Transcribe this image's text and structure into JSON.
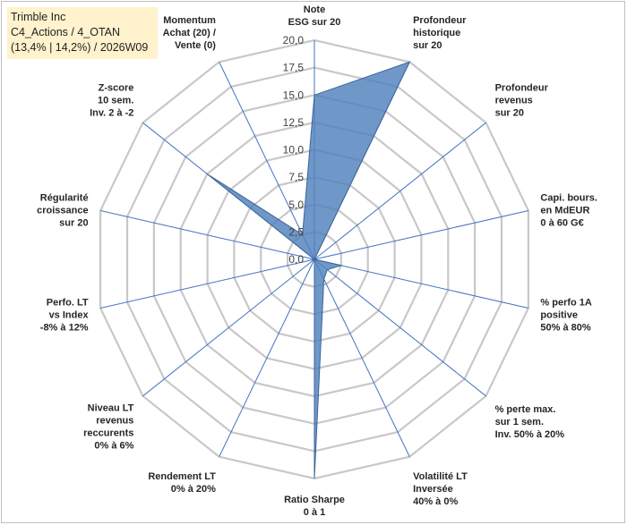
{
  "title_box": {
    "line1": "Trimble Inc",
    "line2": "C4_Actions / 4_OTAN",
    "line3": "(13,4% | 14,2%) / 2026W09"
  },
  "colors": {
    "fill": "#4f81bd",
    "stroke": "#3c6496",
    "axis_line": "#4472c4",
    "grid": "#c8c8c8",
    "title_bg": "#fff2cc"
  },
  "chart_data": {
    "type": "radar",
    "title": "Trimble Inc",
    "rmax": 20,
    "tick_step": 2.5,
    "tick_labels": [
      "0,0",
      "2,5",
      "5,0",
      "7,5",
      "10,0",
      "12,5",
      "15,0",
      "17,5",
      "20,0"
    ],
    "axes": [
      {
        "lines": [
          "Note",
          "ESG sur 20"
        ],
        "value": 15.0
      },
      {
        "lines": [
          "Profondeur",
          "historique",
          "sur 20"
        ],
        "value": 20.0
      },
      {
        "lines": [
          "Profondeur",
          "revenus",
          "sur 20"
        ],
        "value": 0.0
      },
      {
        "lines": [
          "Capi. bours.",
          "en MdEUR",
          "0 à 60 G€"
        ],
        "value": 0.0
      },
      {
        "lines": [
          "% perfo 1A",
          "positive",
          "50% à 80%"
        ],
        "value": 2.5
      },
      {
        "lines": [
          "% perte max.",
          "sur 1 sem.",
          "Inv. 50% à 20%"
        ],
        "value": 1.5
      },
      {
        "lines": [
          "Volatilité LT",
          "Inversée",
          "40% à 0%"
        ],
        "value": 2.0
      },
      {
        "lines": [
          "Ratio Sharpe",
          "0 à 1"
        ],
        "value": 20.0
      },
      {
        "lines": [
          "Rendement LT",
          "0% à 20%"
        ],
        "value": 0.0
      },
      {
        "lines": [
          "Niveau LT",
          "revenus",
          "reccurents",
          "0% à 6%"
        ],
        "value": 0.0
      },
      {
        "lines": [
          "Perfo. LT",
          "vs Index",
          "-8% à 12%"
        ],
        "value": 0.0
      },
      {
        "lines": [
          "Régularité",
          "croissance",
          "sur 20"
        ],
        "value": 0.0
      },
      {
        "lines": [
          "Z-score",
          "10 sem.",
          "Inv. 2 à -2"
        ],
        "value": 12.5
      },
      {
        "lines": [
          "Momentum",
          "Achat (20) /",
          "Vente (0)"
        ],
        "value": 2.5
      }
    ]
  }
}
